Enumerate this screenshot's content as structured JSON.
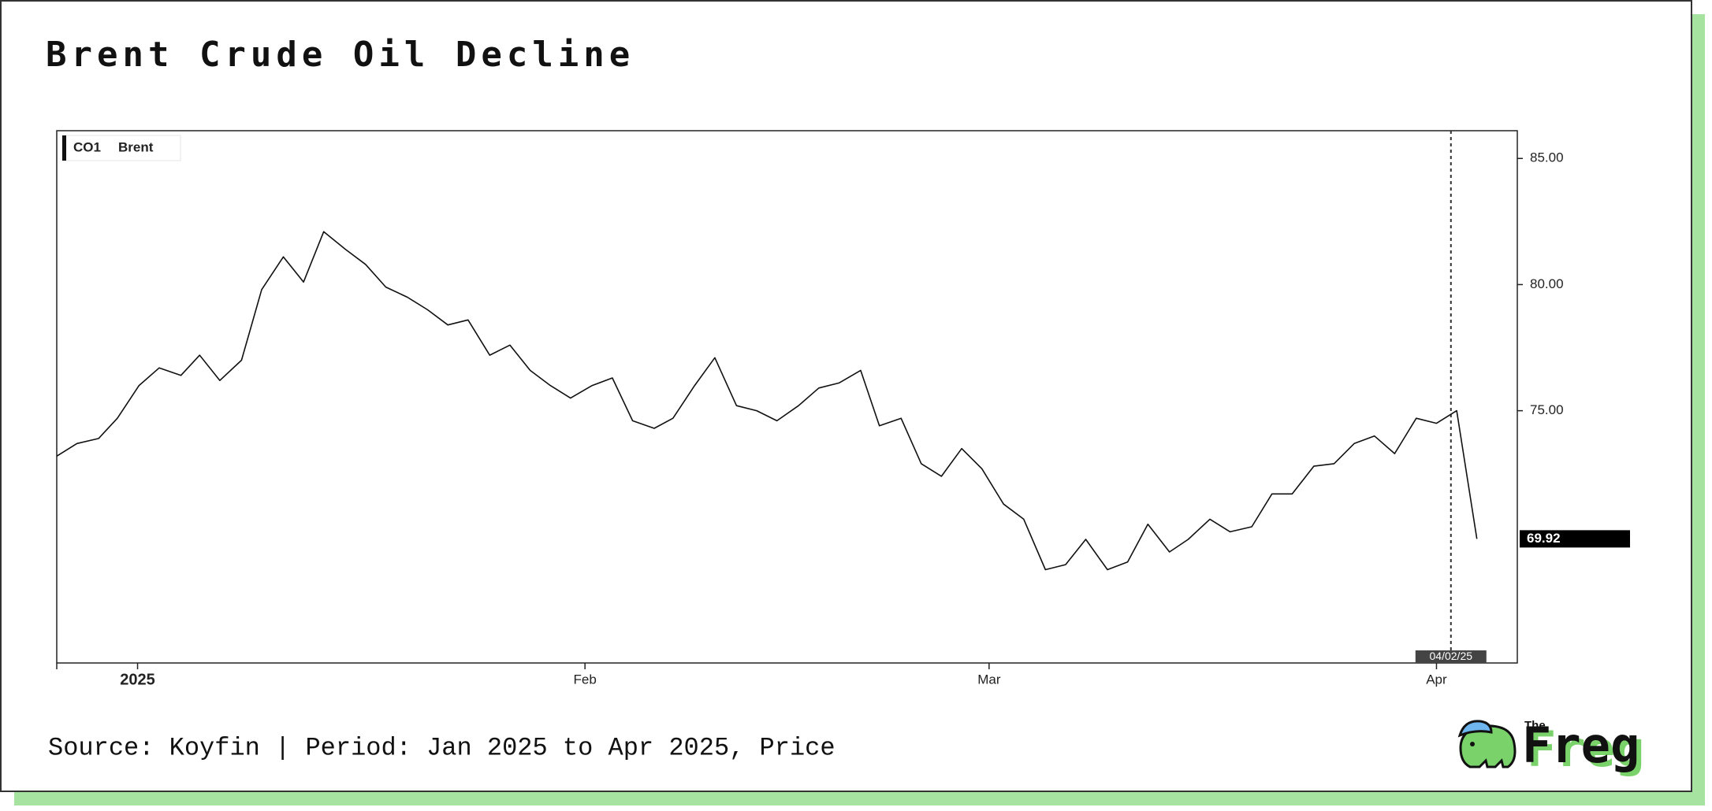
{
  "chart_data": {
    "type": "line",
    "title": "Brent Crude Oil Decline",
    "x": [
      -5.6,
      -4.2,
      -2.7,
      -1.4,
      0.1,
      1.5,
      3.0,
      4.3,
      5.7,
      7.2,
      8.6,
      10.1,
      11.5,
      12.9,
      14.4,
      15.8,
      17.2,
      18.7,
      20.1,
      21.5,
      22.9,
      24.4,
      25.8,
      27.2,
      28.6,
      30.0,
      31.5,
      32.9,
      34.3,
      35.8,
      37.1,
      38.6,
      40.0,
      41.5,
      42.9,
      44.3,
      45.8,
      47.2,
      48.6,
      50.1,
      51.4,
      52.9,
      54.3,
      55.7,
      57.1,
      58.5,
      60.0,
      61.4,
      62.9,
      64.3,
      65.7,
      67.2,
      68.6,
      70.0,
      71.5,
      72.8,
      74.3,
      75.7,
      77.2,
      78.6,
      80.0,
      81.5,
      82.9,
      84.3,
      85.7,
      87.1,
      88.6,
      90.0,
      91.4,
      92.8
    ],
    "series": [
      {
        "name": "Brent",
        "ticker": "CO1",
        "color": "#111111",
        "values": [
          73.2,
          73.7,
          73.9,
          74.7,
          76.0,
          76.7,
          76.4,
          77.2,
          76.2,
          77.0,
          79.8,
          81.1,
          80.1,
          82.1,
          81.4,
          80.8,
          79.9,
          79.5,
          79.0,
          78.4,
          78.6,
          77.2,
          77.6,
          76.6,
          76.0,
          75.5,
          76.0,
          76.3,
          74.6,
          74.3,
          74.7,
          76.0,
          77.1,
          75.2,
          75.0,
          74.6,
          75.2,
          75.9,
          76.1,
          76.6,
          74.4,
          74.7,
          72.9,
          72.4,
          73.5,
          72.7,
          71.3,
          70.7,
          68.7,
          68.9,
          69.9,
          68.7,
          69.0,
          70.5,
          69.4,
          69.9,
          70.7,
          70.2,
          70.4,
          71.7,
          71.7,
          72.8,
          72.9,
          73.7,
          74.0,
          73.3,
          74.7,
          74.5,
          75.0,
          69.92
        ]
      }
    ],
    "xlim": [
      -5.6,
      95.6
    ],
    "xticks": [
      {
        "value": 0,
        "label": "2025"
      },
      {
        "value": 31,
        "label": "Feb"
      },
      {
        "value": 59,
        "label": "Mar"
      },
      {
        "value": 90,
        "label": "Apr"
      }
    ],
    "ylim": [
      65,
      86.1
    ],
    "yticks": [
      {
        "value": 75,
        "label": "75.00"
      },
      {
        "value": 80,
        "label": "80.00"
      },
      {
        "value": 85,
        "label": "85.00"
      }
    ],
    "crosshair": {
      "x": 91,
      "label": "04/02/25"
    },
    "grid": false
  },
  "footer": {
    "source": "Source: Koyfin | Period: Jan 2025 to Apr 2025, Price",
    "logo_small": "The",
    "logo_name": "Freg"
  }
}
